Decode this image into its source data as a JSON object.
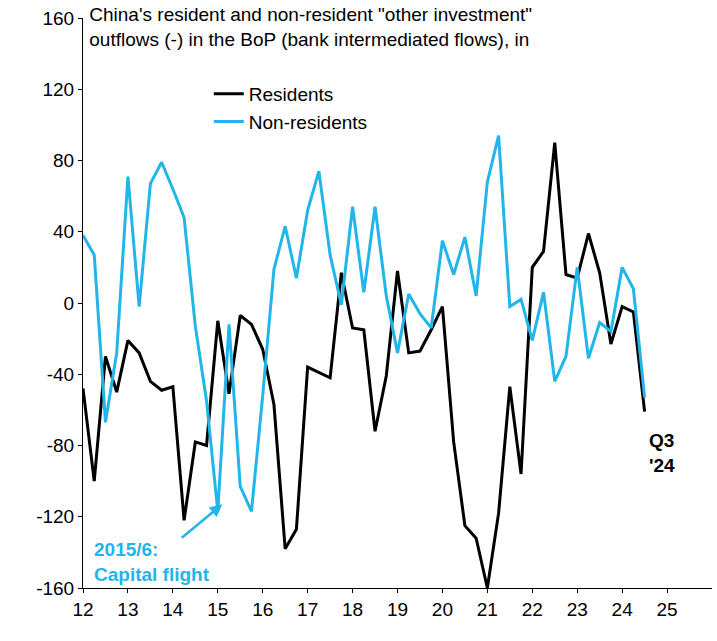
{
  "chart_data": {
    "type": "line",
    "title": "China's resident and non-resident \"other investment\" outflows (-) in the BoP (bank intermediated flows), in",
    "x": [
      2012,
      2012.25,
      2012.5,
      2012.75,
      2013,
      2013.25,
      2013.5,
      2013.75,
      2014,
      2014.25,
      2014.5,
      2014.75,
      2015,
      2015.25,
      2015.5,
      2015.75,
      2016,
      2016.25,
      2016.5,
      2016.75,
      2017,
      2017.25,
      2017.5,
      2017.75,
      2018,
      2018.25,
      2018.5,
      2018.75,
      2019,
      2019.25,
      2019.5,
      2019.75,
      2020,
      2020.25,
      2020.5,
      2020.75,
      2021,
      2021.25,
      2021.5,
      2021.75,
      2022,
      2022.25,
      2022.5,
      2022.75,
      2023,
      2023.25,
      2023.5,
      2023.75,
      2024,
      2024.25,
      2024.5
    ],
    "series": [
      {
        "name": "Residents",
        "color": "#000000",
        "values": [
          -48,
          -100,
          -30,
          -50,
          -21,
          -28,
          -44,
          -49,
          -47,
          -122,
          -78,
          -80,
          -10,
          -51,
          -7,
          -12,
          -26,
          -57,
          -138,
          -127,
          -36,
          -39,
          -42,
          17,
          -14,
          -15,
          -72,
          -41,
          18,
          -28,
          -27,
          -15,
          -2,
          -78,
          -125,
          -132,
          -160,
          -118,
          -47,
          -96,
          20,
          29,
          90,
          16,
          14,
          39,
          17,
          -23,
          -2,
          -5,
          -61
        ]
      },
      {
        "name": "Non-residents",
        "color": "#21b5ea",
        "values": [
          38,
          27,
          -67,
          -28,
          71,
          -2,
          67,
          79,
          64,
          48,
          -13,
          -55,
          -117,
          -12,
          -103,
          -117,
          -52,
          19,
          43,
          14,
          52,
          74,
          27,
          -1,
          54,
          6,
          54,
          4,
          -28,
          5,
          -6,
          -14,
          35,
          16,
          37,
          4,
          68,
          94,
          -2,
          2,
          -21,
          6,
          -44,
          -30,
          20,
          -31,
          -11,
          -16,
          20,
          8,
          -53
        ]
      }
    ],
    "xlim": [
      2012,
      2026
    ],
    "xticks": [
      {
        "value": 2012,
        "label": "12"
      },
      {
        "value": 2013,
        "label": "13"
      },
      {
        "value": 2014,
        "label": "14"
      },
      {
        "value": 2015,
        "label": "15"
      },
      {
        "value": 2016,
        "label": "16"
      },
      {
        "value": 2017,
        "label": "17"
      },
      {
        "value": 2018,
        "label": "18"
      },
      {
        "value": 2019,
        "label": "19"
      },
      {
        "value": 2020,
        "label": "20"
      },
      {
        "value": 2021,
        "label": "21"
      },
      {
        "value": 2022,
        "label": "22"
      },
      {
        "value": 2023,
        "label": "23"
      },
      {
        "value": 2024,
        "label": "24"
      },
      {
        "value": 2025,
        "label": "25"
      }
    ],
    "ylim": [
      -160,
      160
    ],
    "yticks": [
      -160,
      -120,
      -80,
      -40,
      0,
      40,
      80,
      120,
      160
    ],
    "grid": false,
    "legend": "top",
    "annotations": [
      {
        "text": "2015/6:\nCapital flight",
        "color": "#21b5ea"
      },
      {
        "text": "Q3\n'24",
        "color": "#000000"
      }
    ]
  }
}
